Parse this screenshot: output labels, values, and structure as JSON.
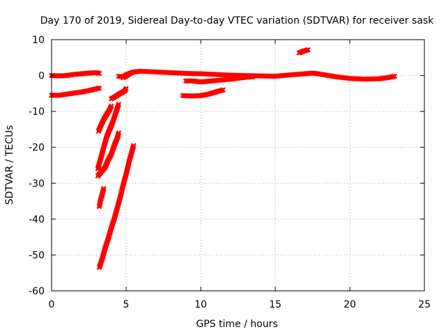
{
  "chart_data": {
    "type": "scatter",
    "title": "Day 170 of 2019, Sidereal Day-to-day VTEC variation (SDTVAR) for receiver sask",
    "xlabel": "GPS time / hours",
    "ylabel": "SDTVAR / TECUs",
    "xlim": [
      0,
      25
    ],
    "ylim": [
      -60,
      10
    ],
    "xticks": [
      0,
      5,
      10,
      15,
      20,
      25
    ],
    "yticks": [
      10,
      0,
      -10,
      -20,
      -30,
      -40,
      -50,
      -60
    ],
    "grid": true,
    "marker_color": "#ff0000",
    "series": [
      {
        "name": "arc-main-top",
        "points": [
          [
            0.0,
            0.0
          ],
          [
            0.5,
            -0.1
          ],
          [
            1.0,
            0.0
          ],
          [
            1.5,
            0.3
          ],
          [
            2.0,
            0.5
          ],
          [
            2.5,
            0.7
          ],
          [
            3.0,
            0.8
          ],
          [
            3.2,
            0.6
          ]
        ]
      },
      {
        "name": "arc-main-bottom-left",
        "points": [
          [
            0.0,
            -5.5
          ],
          [
            0.5,
            -5.5
          ],
          [
            1.0,
            -5.2
          ],
          [
            1.5,
            -4.9
          ],
          [
            2.0,
            -4.6
          ],
          [
            2.5,
            -4.2
          ],
          [
            3.0,
            -3.7
          ],
          [
            3.2,
            -3.5
          ]
        ]
      },
      {
        "name": "arc-descending-1",
        "points": [
          [
            3.15,
            -15.5
          ],
          [
            3.35,
            -13.5
          ],
          [
            3.6,
            -11.5
          ],
          [
            3.9,
            -9.5
          ],
          [
            4.0,
            -8.5
          ]
        ]
      },
      {
        "name": "arc-descending-2",
        "points": [
          [
            4.0,
            -6.5
          ],
          [
            4.3,
            -5.8
          ],
          [
            4.6,
            -5.0
          ],
          [
            4.9,
            -4.3
          ],
          [
            5.0,
            -3.6
          ]
        ]
      },
      {
        "name": "arc-mid-top",
        "points": [
          [
            4.8,
            -0.6
          ],
          [
            5.0,
            0.2
          ],
          [
            5.5,
            1.0
          ],
          [
            6.0,
            1.2
          ],
          [
            7.0,
            1.0
          ],
          [
            8.0,
            0.8
          ],
          [
            9.0,
            0.6
          ],
          [
            10.0,
            0.5
          ],
          [
            11.0,
            0.3
          ],
          [
            12.0,
            0.1
          ],
          [
            13.0,
            0.0
          ],
          [
            14.0,
            -0.1
          ],
          [
            15.0,
            -0.2
          ],
          [
            16.0,
            0.2
          ],
          [
            17.0,
            0.5
          ],
          [
            17.5,
            0.7
          ],
          [
            18.0,
            0.4
          ],
          [
            19.0,
            -0.3
          ],
          [
            20.0,
            -0.8
          ],
          [
            21.0,
            -1.0
          ],
          [
            22.0,
            -0.9
          ],
          [
            22.5,
            -0.6
          ],
          [
            23.0,
            -0.2
          ]
        ]
      },
      {
        "name": "arc-mid-lower",
        "points": [
          [
            9.0,
            -1.5
          ],
          [
            9.5,
            -1.5
          ],
          [
            10.0,
            -1.8
          ],
          [
            10.5,
            -1.6
          ],
          [
            11.0,
            -1.4
          ],
          [
            12.0,
            -1.0
          ],
          [
            13.0,
            -0.5
          ],
          [
            13.5,
            -0.3
          ]
        ]
      },
      {
        "name": "arc-9-12",
        "points": [
          [
            8.8,
            -5.6
          ],
          [
            9.5,
            -5.7
          ],
          [
            10.0,
            -5.6
          ],
          [
            10.5,
            -5.2
          ],
          [
            11.0,
            -4.6
          ],
          [
            11.5,
            -4.0
          ]
        ]
      },
      {
        "name": "arc-17",
        "points": [
          [
            16.6,
            6.3
          ],
          [
            16.9,
            6.8
          ],
          [
            17.2,
            7.2
          ]
        ]
      },
      {
        "name": "arc-steep-a",
        "points": [
          [
            3.1,
            -26.0
          ],
          [
            3.3,
            -23.0
          ],
          [
            3.5,
            -20.0
          ],
          [
            3.7,
            -17.0
          ],
          [
            3.9,
            -15.0
          ],
          [
            4.1,
            -13.0
          ],
          [
            4.3,
            -10.5
          ],
          [
            4.5,
            -8.0
          ]
        ]
      },
      {
        "name": "arc-steep-b",
        "points": [
          [
            3.1,
            -28.0
          ],
          [
            3.3,
            -27.0
          ],
          [
            3.6,
            -25.5
          ],
          [
            3.8,
            -23.5
          ],
          [
            4.0,
            -22.0
          ],
          [
            4.2,
            -19.5
          ],
          [
            4.4,
            -17.5
          ],
          [
            4.5,
            -16.0
          ]
        ]
      },
      {
        "name": "arc-steep-c",
        "points": [
          [
            3.2,
            -36.5
          ],
          [
            3.3,
            -34.5
          ],
          [
            3.4,
            -33.0
          ],
          [
            3.5,
            -31.5
          ]
        ]
      },
      {
        "name": "arc-steep-long",
        "points": [
          [
            3.2,
            -53.5
          ],
          [
            3.4,
            -51.0
          ],
          [
            3.6,
            -48.0
          ],
          [
            3.8,
            -45.5
          ],
          [
            4.0,
            -42.5
          ],
          [
            4.2,
            -40.0
          ],
          [
            4.4,
            -37.0
          ],
          [
            4.6,
            -34.0
          ],
          [
            4.8,
            -30.5
          ],
          [
            5.0,
            -27.5
          ],
          [
            5.2,
            -24.0
          ],
          [
            5.4,
            -21.0
          ],
          [
            5.5,
            -19.5
          ]
        ]
      },
      {
        "name": "arc-small-dip",
        "points": [
          [
            4.5,
            -0.2
          ],
          [
            4.9,
            -0.4
          ],
          [
            5.2,
            0.4
          ]
        ]
      }
    ]
  }
}
